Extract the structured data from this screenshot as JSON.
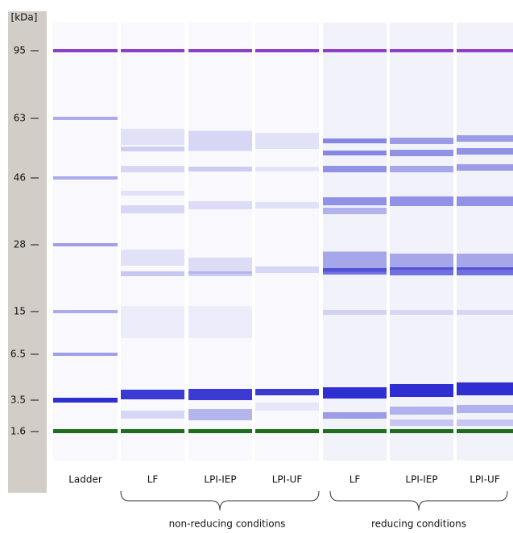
{
  "axis_unit": "[kDa]",
  "markers": [
    "95",
    "63",
    "46",
    "28",
    "15",
    "6.5",
    "3.5",
    "1.6"
  ],
  "lanes": [
    "Ladder",
    "LF",
    "LPI-IEP",
    "LPI-UF",
    "LF",
    "LPI-IEP",
    "LPI-UF"
  ],
  "groups": [
    "non-reducing conditions",
    "reducing conditions"
  ]
}
